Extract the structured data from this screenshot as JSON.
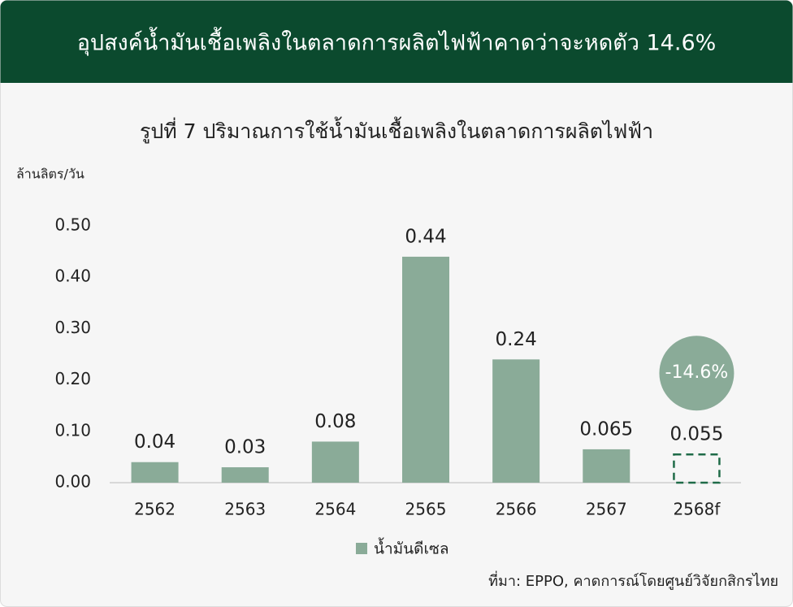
{
  "header": {
    "title": "อุปสงค์น้ำมันเชื้อเพลิงในตลาดการผลิตไฟฟ้าคาดว่าจะหดตัว 14.6%"
  },
  "chart_data": {
    "type": "bar",
    "title": "รูปที่ 7 ปริมาณการใช้น้ำมันเชื้อเพลิงในตลาดการผลิตไฟฟ้า",
    "y_label": "ล้านลิตร/วัน",
    "categories": [
      "2562",
      "2563",
      "2564",
      "2565",
      "2566",
      "2567",
      "2568f"
    ],
    "series": [
      {
        "name": "น้ำมันดีเซล",
        "color": "#8aab98",
        "values": [
          0.04,
          0.03,
          0.08,
          0.44,
          0.24,
          0.065,
          0.055
        ]
      }
    ],
    "bar_styles": [
      "solid",
      "solid",
      "solid",
      "solid",
      "solid",
      "solid",
      "dashed"
    ],
    "ylim": [
      0,
      0.5
    ],
    "yticks": [
      {
        "value": 0,
        "label": "0.00"
      },
      {
        "value": 0.1,
        "label": "0.10"
      },
      {
        "value": 0.2,
        "label": "0.20"
      },
      {
        "value": 0.3,
        "label": "0.30"
      },
      {
        "value": 0.4,
        "label": "0.40"
      },
      {
        "value": 0.5,
        "label": "0.50"
      }
    ],
    "grid": false,
    "annotation": "-14.6%",
    "source": "ที่มา: EPPO, คาดการณ์โดยศูนย์วิจัยกสิกรไทย"
  }
}
